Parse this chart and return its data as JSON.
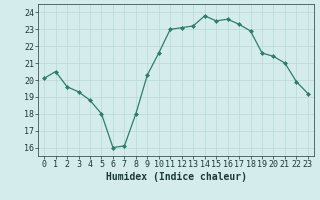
{
  "x": [
    0,
    1,
    2,
    3,
    4,
    5,
    6,
    7,
    8,
    9,
    10,
    11,
    12,
    13,
    14,
    15,
    16,
    17,
    18,
    19,
    20,
    21,
    22,
    23
  ],
  "y": [
    20.1,
    20.5,
    19.6,
    19.3,
    18.8,
    18.0,
    16.0,
    16.1,
    18.0,
    20.3,
    21.6,
    23.0,
    23.1,
    23.2,
    23.8,
    23.5,
    23.6,
    23.3,
    22.9,
    21.6,
    21.4,
    21.0,
    19.9,
    19.2
  ],
  "xlabel": "Humidex (Indice chaleur)",
  "xlim": [
    -0.5,
    23.5
  ],
  "ylim": [
    15.5,
    24.5
  ],
  "yticks": [
    16,
    17,
    18,
    19,
    20,
    21,
    22,
    23,
    24
  ],
  "xticks": [
    0,
    1,
    2,
    3,
    4,
    5,
    6,
    7,
    8,
    9,
    10,
    11,
    12,
    13,
    14,
    15,
    16,
    17,
    18,
    19,
    20,
    21,
    22,
    23
  ],
  "line_color": "#2d7d6d",
  "marker": "D",
  "marker_size": 2.0,
  "bg_color": "#d5ecec",
  "grid_color": "#b8d8d8",
  "text_color": "#1a3a3a",
  "label_fontsize": 7,
  "tick_fontsize": 6
}
